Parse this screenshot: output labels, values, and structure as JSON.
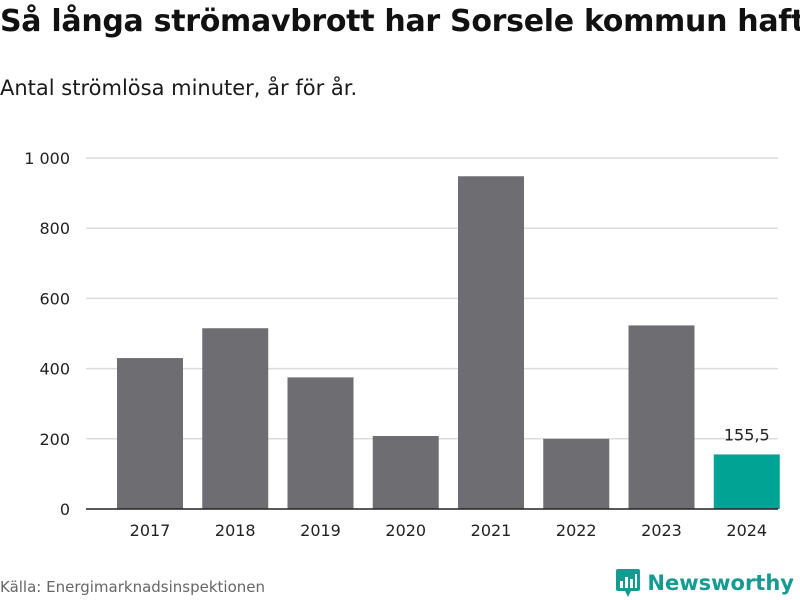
{
  "chart_data": {
    "type": "bar",
    "title": "Så långa strömavbrott har Sorsele kommun haft",
    "subtitle": "Antal strömlösa minuter, år för år.",
    "categories": [
      "2017",
      "2018",
      "2019",
      "2020",
      "2021",
      "2022",
      "2023",
      "2024"
    ],
    "values": [
      430,
      515,
      375,
      208,
      948,
      200,
      523,
      155.5
    ],
    "highlight_index": 7,
    "highlight_label": "155,5",
    "ylim": [
      0,
      1000
    ],
    "yticks": [
      0,
      200,
      400,
      600,
      800,
      1000
    ],
    "ytick_labels": [
      "0",
      "200",
      "400",
      "600",
      "800",
      "1 000"
    ],
    "grid": true,
    "xlabel": "",
    "ylabel": ""
  },
  "colors": {
    "bar": "#6e6d72",
    "highlight": "#00a394",
    "grid": "#dcdcdc",
    "axis": "#222222",
    "brand": "#179a8f"
  },
  "source": "Källa: Energimarknadsinspektionen",
  "brand": {
    "name": "Newsworthy",
    "icon": "bar-chart-badge-icon"
  }
}
